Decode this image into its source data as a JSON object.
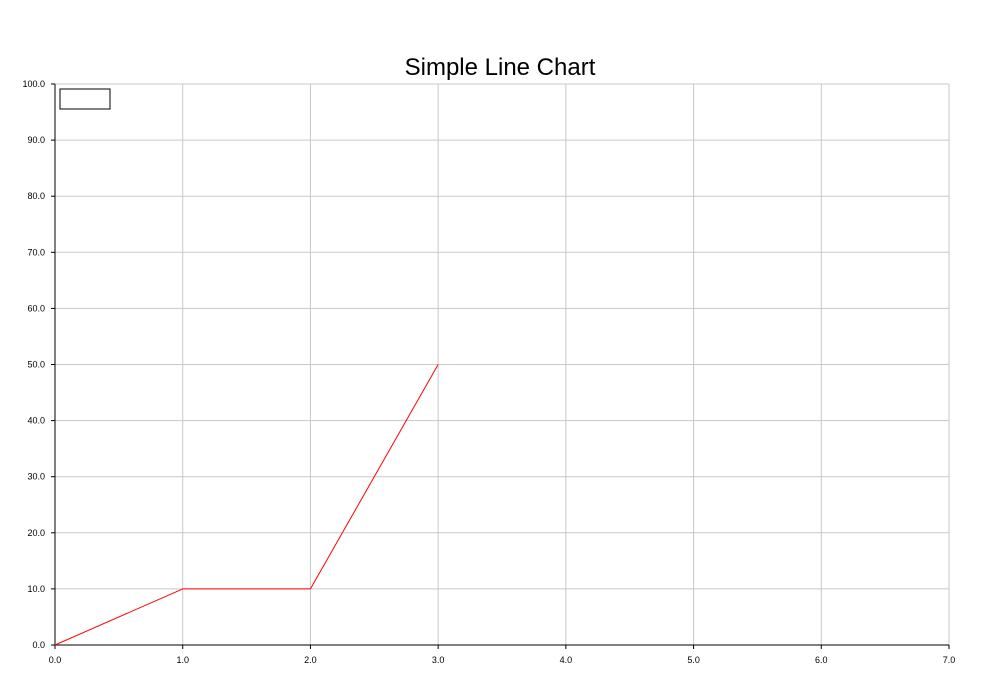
{
  "chart_data": {
    "type": "line",
    "title": "Simple Line Chart",
    "xlabel": "",
    "ylabel": "",
    "xlim": [
      0,
      7
    ],
    "ylim": [
      0,
      100
    ],
    "x_ticks": [
      "0.0",
      "1.0",
      "2.0",
      "3.0",
      "4.0",
      "5.0",
      "6.0",
      "7.0"
    ],
    "y_ticks": [
      "0.0",
      "10.0",
      "20.0",
      "30.0",
      "40.0",
      "50.0",
      "60.0",
      "70.0",
      "80.0",
      "90.0",
      "100.0"
    ],
    "grid": true,
    "legend_position": "top-left",
    "series": [
      {
        "color": "#ff0000",
        "points": [
          {
            "x": 0,
            "y": 0
          },
          {
            "x": 1,
            "y": 10
          },
          {
            "x": 2,
            "y": 10
          },
          {
            "x": 3,
            "y": 50
          }
        ]
      }
    ]
  }
}
